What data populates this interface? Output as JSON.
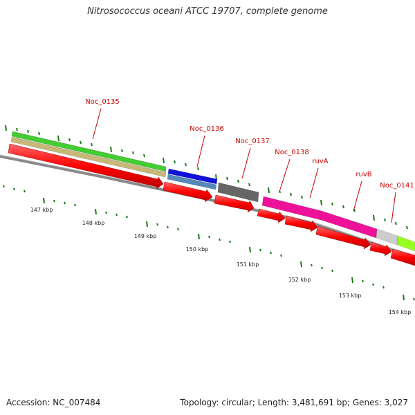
{
  "title": "Nitrosococcus oceani ATCC 19707, complete genome",
  "footer": {
    "accession": "Accession: NC_007484",
    "topology": "Topology: circular; Length: 3,481,691 bp; Genes: 3,027"
  },
  "colors": {
    "background": "#ffffff",
    "backbone": "#888888",
    "tick": "#1a7a1a",
    "gene_label": "#cc0000",
    "cds_arrow": "#ff0000"
  },
  "kbp_labels": [
    {
      "kbp": 147,
      "text": "147 kbp"
    },
    {
      "kbp": 148,
      "text": "148 kbp"
    },
    {
      "kbp": 149,
      "text": "149 kbp"
    },
    {
      "kbp": 150,
      "text": "150 kbp"
    },
    {
      "kbp": 151,
      "text": "151 kbp"
    },
    {
      "kbp": 152,
      "text": "152 kbp"
    },
    {
      "kbp": 153,
      "text": "153 kbp"
    },
    {
      "kbp": 154,
      "text": "154 kbp"
    }
  ],
  "genes": [
    {
      "name": "Noc_0135",
      "color": "#44cc33",
      "second_color": "#c8b878"
    },
    {
      "name": "Noc_0136",
      "color": "#1111dd",
      "second_color": "#5588bb"
    },
    {
      "name": "Noc_0137",
      "color": "#666666",
      "second_color": ""
    },
    {
      "name": "Noc_0138",
      "color": "#ee1199",
      "second_color": ""
    },
    {
      "name": "ruvA",
      "color": "#ee1199",
      "second_color": ""
    },
    {
      "name": "ruvB",
      "color": "#ee1199",
      "second_color": ""
    },
    {
      "name": "Noc_0141",
      "color": "#cccccc",
      "second_color": ""
    },
    {
      "name": "",
      "color": "#99ff22",
      "second_color": ""
    }
  ]
}
